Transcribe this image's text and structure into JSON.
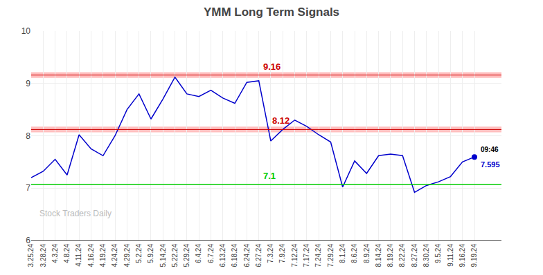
{
  "chart_data": {
    "type": "line",
    "title": "YMM Long Term Signals",
    "categories": [
      "3.25.24",
      "3.28.24",
      "4.3.24",
      "4.8.24",
      "4.11.24",
      "4.16.24",
      "4.19.24",
      "4.24.24",
      "4.29.24",
      "5.2.24",
      "5.9.24",
      "5.14.24",
      "5.22.24",
      "5.29.24",
      "6.4.24",
      "6.7.24",
      "6.13.24",
      "6.18.24",
      "6.24.24",
      "6.27.24",
      "7.3.24",
      "7.9.24",
      "7.12.24",
      "7.17.24",
      "7.24.24",
      "7.29.24",
      "8.1.24",
      "8.6.24",
      "8.9.24",
      "8.14.24",
      "8.19.24",
      "8.22.24",
      "8.27.24",
      "8.30.24",
      "9.5.24",
      "9.11.24",
      "9.16.24",
      "9.19.24"
    ],
    "values": [
      7.2,
      7.32,
      7.55,
      7.25,
      8.02,
      7.75,
      7.62,
      8.0,
      8.5,
      8.8,
      8.32,
      8.7,
      9.12,
      8.8,
      8.75,
      8.87,
      8.72,
      8.62,
      9.02,
      9.05,
      7.9,
      8.12,
      8.3,
      8.18,
      8.02,
      7.88,
      7.02,
      7.52,
      7.28,
      7.62,
      7.65,
      7.62,
      6.92,
      7.05,
      7.12,
      7.22,
      7.5,
      7.595
    ],
    "color": "#0000cc",
    "ylim": [
      6,
      10
    ],
    "yticks": [
      6,
      7,
      8,
      9,
      10
    ],
    "grid": true,
    "hlines": [
      {
        "value": 9.16,
        "label": "9.16",
        "color": "#cc0000",
        "band": 0.055
      },
      {
        "value": 8.12,
        "label": "8.12",
        "color": "#cc0000",
        "band": 0.055
      },
      {
        "value": 7.07,
        "label": "7.1",
        "color": "#00cc00"
      }
    ],
    "last_point": {
      "time_label": "09:46",
      "value_label": "7.595",
      "color": "#0000cc"
    },
    "watermark": "Stock Traders Daily"
  }
}
